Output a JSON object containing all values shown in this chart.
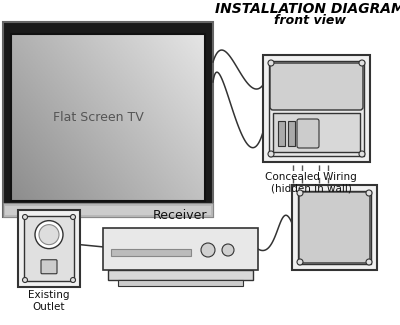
{
  "title_line1": "INSTALLATION DIAGRAM",
  "title_line2": "front view",
  "label_tv": "Flat Screen TV",
  "label_receiver": "Receiver",
  "label_outlet": "Existing\nOutlet",
  "label_concealed": "Concealed Wiring\n(hidden in wall)",
  "bg_color": "#ffffff",
  "outline_color": "#333333",
  "text_color": "#111111",
  "tv_bezel_color": "#1a1a1a",
  "tv_base_color": "#aaaaaa",
  "screen_dark": "#888888",
  "screen_light": "#dddddd"
}
